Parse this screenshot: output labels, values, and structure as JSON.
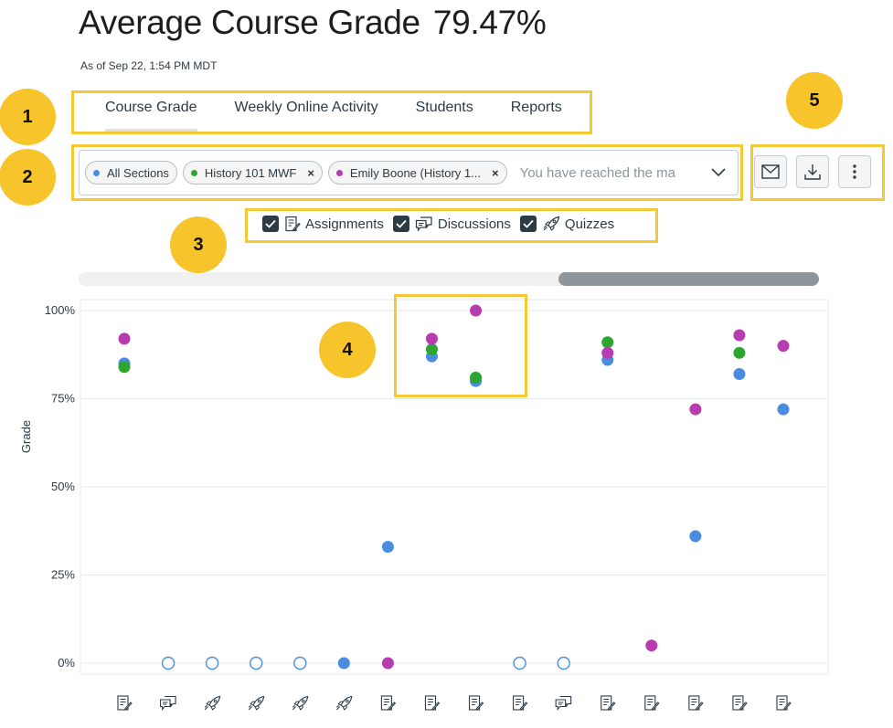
{
  "header": {
    "title": "Average Course Grade",
    "grade_value": "79.47%",
    "as_of": "As of Sep 22, 1:54 PM MDT"
  },
  "tabs": [
    {
      "label": "Course Grade",
      "active": true
    },
    {
      "label": "Weekly Online Activity",
      "active": false
    },
    {
      "label": "Students",
      "active": false
    },
    {
      "label": "Reports",
      "active": false
    }
  ],
  "filters": {
    "chips": [
      {
        "label": "All Sections",
        "color": "#4a8de0",
        "removable": false
      },
      {
        "label": "History 101 MWF",
        "color": "#2ea52e",
        "removable": true
      },
      {
        "label": "Emily Boone (History 1...",
        "color": "#b63cb0",
        "removable": true
      }
    ],
    "remove_glyph": "×",
    "placeholder": "You have reached the ma"
  },
  "actions": [
    {
      "icon": "envelope-icon"
    },
    {
      "icon": "download-icon"
    },
    {
      "icon": "more-vertical-icon"
    }
  ],
  "type_filters": [
    {
      "label": "Assignments",
      "checked": true,
      "icon": "assignment-icon"
    },
    {
      "label": "Discussions",
      "checked": true,
      "icon": "discussion-icon"
    },
    {
      "label": "Quizzes",
      "checked": true,
      "icon": "quiz-icon"
    }
  ],
  "callouts": [
    "1",
    "2",
    "3",
    "4",
    "5"
  ],
  "colors": {
    "accent": "#f7c52b",
    "all_sections": "#4a8de0",
    "section": "#2ea52e",
    "student": "#b63cb0"
  },
  "chart_data": {
    "type": "scatter",
    "ylabel": "Grade",
    "ylim": [
      0,
      100
    ],
    "yticks": [
      "0%",
      "25%",
      "50%",
      "75%",
      "100%"
    ],
    "categories": [
      "assignment-icon",
      "discussion-icon",
      "quiz-icon",
      "quiz-icon",
      "quiz-icon",
      "quiz-icon",
      "assignment-icon",
      "assignment-icon",
      "assignment-icon",
      "assignment-icon",
      "discussion-icon",
      "assignment-icon",
      "assignment-icon",
      "assignment-icon",
      "assignment-icon",
      "assignment-icon"
    ],
    "series": [
      {
        "color": "#4a8de0",
        "values": [
          85,
          null,
          null,
          null,
          null,
          0,
          33,
          87,
          80,
          null,
          null,
          86,
          null,
          36,
          82,
          72
        ]
      },
      {
        "color": "#2ea52e",
        "values": [
          84,
          null,
          null,
          null,
          null,
          null,
          null,
          89,
          81,
          null,
          null,
          91,
          null,
          null,
          88,
          null
        ]
      },
      {
        "color": "#b63cb0",
        "values": [
          92,
          null,
          null,
          null,
          null,
          null,
          0,
          92,
          100,
          null,
          null,
          88,
          5,
          72,
          93,
          90
        ]
      }
    ],
    "empty_points": [
      1,
      2,
      3,
      4,
      9,
      10
    ],
    "grid": true
  }
}
